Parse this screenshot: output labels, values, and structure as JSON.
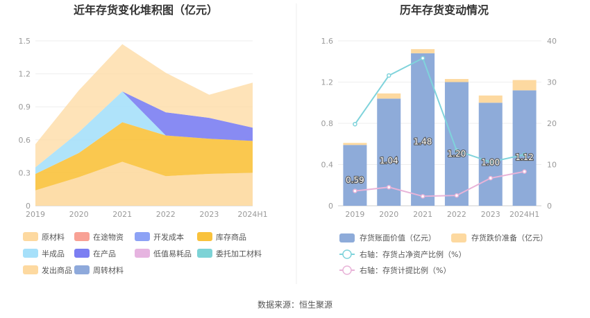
{
  "chart_data": [
    {
      "type": "area",
      "title": "近年存货变化堆积图（亿元）",
      "categories": [
        "2019",
        "2020",
        "2021",
        "2022",
        "2023",
        "2024H1"
      ],
      "ylim": [
        0,
        1.5
      ],
      "yticks": [
        "0",
        "0.3",
        "0.6",
        "0.9",
        "1.2",
        "1.5"
      ],
      "grid": true,
      "stacked": true,
      "series": [
        {
          "name": "原材料",
          "color": "#FDD9A0",
          "values": [
            0.14,
            0.26,
            0.4,
            0.27,
            0.29,
            0.3
          ]
        },
        {
          "name": "在途物资",
          "color": "#F8A195",
          "values": [
            0,
            0,
            0,
            0,
            0,
            0
          ]
        },
        {
          "name": "开发成本",
          "color": "#8DA2F5",
          "values": [
            0,
            0,
            0,
            0,
            0,
            0
          ]
        },
        {
          "name": "库存商品",
          "color": "#F9C23C",
          "values": [
            0.15,
            0.22,
            0.36,
            0.37,
            0.32,
            0.29
          ]
        },
        {
          "name": "半成品",
          "color": "#A6E0FA",
          "values": [
            0.06,
            0.19,
            0.28,
            0,
            0,
            0
          ]
        },
        {
          "name": "在产品",
          "color": "#7B7EF2",
          "values": [
            0,
            0,
            0,
            0.21,
            0.19,
            0.12
          ]
        },
        {
          "name": "低值易耗品",
          "color": "#E6B4E0",
          "values": [
            0,
            0,
            0,
            0,
            0,
            0
          ]
        },
        {
          "name": "委托加工材料",
          "color": "#7DD3D6",
          "values": [
            0,
            0,
            0,
            0,
            0,
            0
          ]
        },
        {
          "name": "发出商品",
          "color": "#FDD9A0",
          "values": [
            0.21,
            0.38,
            0.43,
            0.36,
            0.21,
            0.41
          ]
        },
        {
          "name": "周转材料",
          "color": "#8EA9DB",
          "values": [
            0,
            0,
            0,
            0,
            0,
            0
          ]
        }
      ]
    },
    {
      "type": "bar",
      "title": "历年存货变动情况",
      "categories": [
        "2019",
        "2020",
        "2021",
        "2022",
        "2023",
        "2024H1"
      ],
      "ylim": [
        0,
        1.6
      ],
      "yticks": [
        "0",
        "0.4",
        "0.8",
        "1.2",
        "1.6"
      ],
      "y2lim": [
        0,
        40
      ],
      "y2ticks": [
        "0",
        "10",
        "20",
        "30",
        "40"
      ],
      "grid": true,
      "series": [
        {
          "name": "存货账面价值（亿元）",
          "kind": "bar",
          "color": "#8EABD9",
          "values": [
            0.59,
            1.04,
            1.48,
            1.2,
            1.0,
            1.12
          ],
          "labels": [
            "0.59",
            "1.04",
            "1.48",
            "1.20",
            "1.00",
            "1.12"
          ]
        },
        {
          "name": "存货跌价准备（亿元）",
          "kind": "bar-stack",
          "color": "#FDD9A0",
          "values": [
            0.02,
            0.05,
            0.04,
            0.03,
            0.07,
            0.1
          ]
        },
        {
          "name": "右轴：存货占净资产比例（%）",
          "kind": "line",
          "axis": "right",
          "color": "#7FD3DB",
          "values": [
            19.8,
            31.6,
            35.8,
            13.4,
            10.6,
            12.4
          ]
        },
        {
          "name": "右轴：存货计提比例（%）",
          "kind": "line",
          "axis": "right",
          "color": "#E8B3D8",
          "values": [
            3.6,
            4.5,
            2.3,
            2.5,
            6.7,
            8.3
          ]
        }
      ]
    }
  ],
  "footer": {
    "source": "数据来源：恒生聚源"
  }
}
